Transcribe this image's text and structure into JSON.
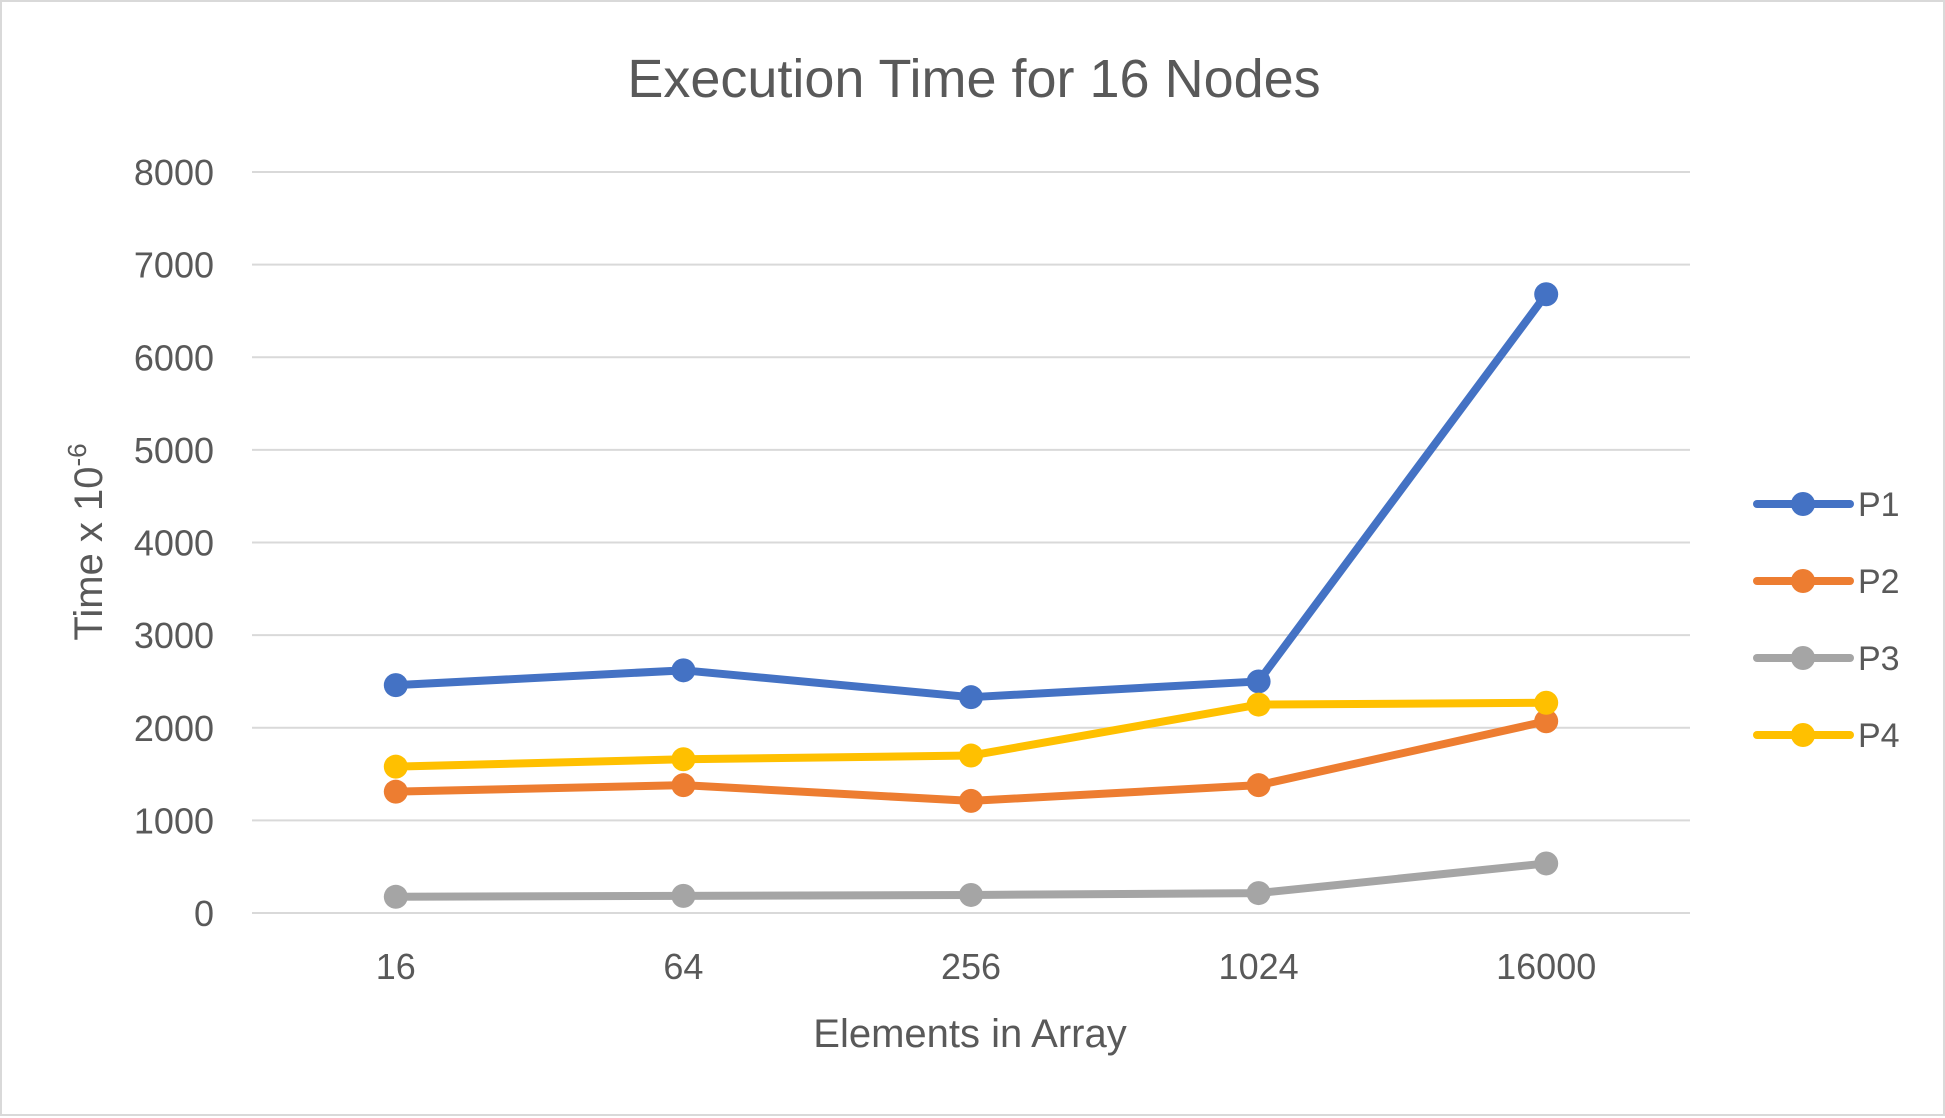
{
  "chart_data": {
    "type": "line",
    "title": "Execution Time for 16 Nodes",
    "xlabel": "Elements in Array",
    "ylabel_base": "Time x 10",
    "ylabel_exponent": "-6",
    "categories": [
      "16",
      "64",
      "256",
      "1024",
      "16000"
    ],
    "ylim": [
      0,
      8000
    ],
    "yticks": [
      "0",
      "1000",
      "2000",
      "3000",
      "4000",
      "5000",
      "6000",
      "7000",
      "8000"
    ],
    "grid": true,
    "legend_position": "right",
    "series": [
      {
        "name": "P1",
        "color": "#4472c4",
        "values": [
          2460,
          2620,
          2330,
          2500,
          6680
        ]
      },
      {
        "name": "P2",
        "color": "#ed7d31",
        "values": [
          1310,
          1380,
          1210,
          1380,
          2070
        ]
      },
      {
        "name": "P3",
        "color": "#a5a5a5",
        "values": [
          175,
          185,
          195,
          215,
          535
        ]
      },
      {
        "name": "P4",
        "color": "#ffc000",
        "values": [
          1580,
          1660,
          1700,
          2250,
          2270
        ]
      }
    ]
  }
}
